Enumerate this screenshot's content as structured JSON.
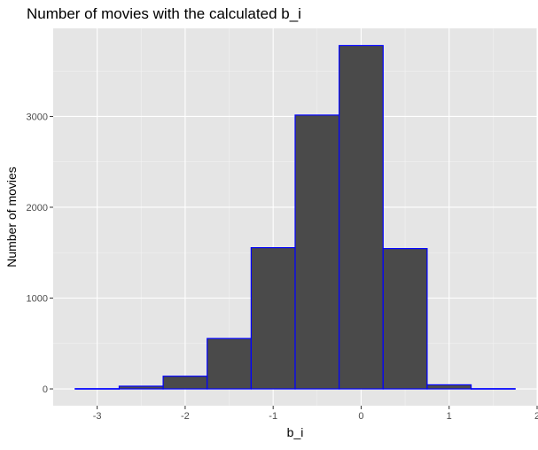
{
  "chart_data": {
    "type": "bar",
    "title": "Number of movies with the calculated b_i",
    "xlabel": "b_i",
    "ylabel": "Number of movies",
    "bin_width": 0.5,
    "bins": [
      {
        "x0": -3.25,
        "x1": -2.75,
        "count": 3
      },
      {
        "x0": -2.75,
        "x1": -2.25,
        "count": 30
      },
      {
        "x0": -2.25,
        "x1": -1.75,
        "count": 140
      },
      {
        "x0": -1.75,
        "x1": -1.25,
        "count": 555
      },
      {
        "x0": -1.25,
        "x1": -0.75,
        "count": 1555
      },
      {
        "x0": -0.75,
        "x1": -0.25,
        "count": 3015
      },
      {
        "x0": -0.25,
        "x1": 0.25,
        "count": 3780
      },
      {
        "x0": 0.25,
        "x1": 0.75,
        "count": 1545
      },
      {
        "x0": 0.75,
        "x1": 1.25,
        "count": 45
      },
      {
        "x0": 1.25,
        "x1": 1.75,
        "count": 3
      }
    ],
    "xlim": [
      -3.5,
      2.0
    ],
    "ylim": [
      -185,
      3970
    ],
    "x_ticks": [
      -3,
      -2,
      -1,
      0,
      1,
      2
    ],
    "x_tick_labels": [
      "-3",
      "-2",
      "-1",
      "0",
      "1",
      "2"
    ],
    "y_ticks": [
      0,
      1000,
      2000,
      3000
    ],
    "y_tick_labels": [
      "0",
      "1000",
      "2000",
      "3000"
    ],
    "grid": true,
    "panel_background": "#e5e5e5",
    "bar_fill": "#4a4a4a",
    "bar_outline": "#0000ff"
  }
}
